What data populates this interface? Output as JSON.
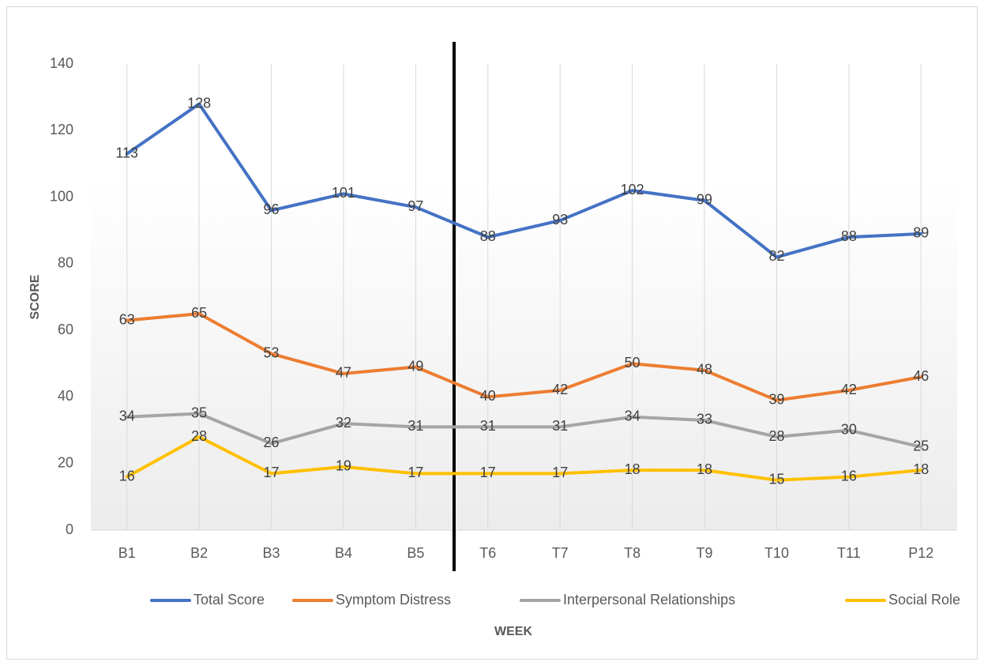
{
  "chart_data": {
    "type": "line",
    "x_label": "WEEK",
    "y_label": "SCORE",
    "categories": [
      "B1",
      "B2",
      "B3",
      "B4",
      "B5",
      "T6",
      "T7",
      "T8",
      "T9",
      "T10",
      "T11",
      "P12"
    ],
    "series": [
      {
        "name": "Total Score",
        "color": "#4472c4",
        "values": [
          113,
          128,
          96,
          101,
          97,
          88,
          93,
          102,
          99,
          82,
          88,
          89
        ]
      },
      {
        "name": "Symptom Distress",
        "color": "#ed7d31",
        "values": [
          63,
          65,
          53,
          47,
          49,
          40,
          42,
          50,
          48,
          39,
          42,
          46
        ]
      },
      {
        "name": "Interpersonal Relationships",
        "color": "#a5a5a5",
        "values": [
          34,
          35,
          26,
          32,
          31,
          31,
          31,
          34,
          33,
          28,
          30,
          25
        ]
      },
      {
        "name": "Social Role",
        "color": "#ffc000",
        "values": [
          16,
          28,
          17,
          19,
          17,
          17,
          17,
          18,
          18,
          15,
          16,
          18
        ]
      }
    ],
    "ylim": [
      0,
      140
    ],
    "yticks": [
      0,
      20,
      40,
      60,
      80,
      100,
      120,
      140
    ],
    "grid": "vertical",
    "legend": "bottom",
    "data_labels": true
  }
}
